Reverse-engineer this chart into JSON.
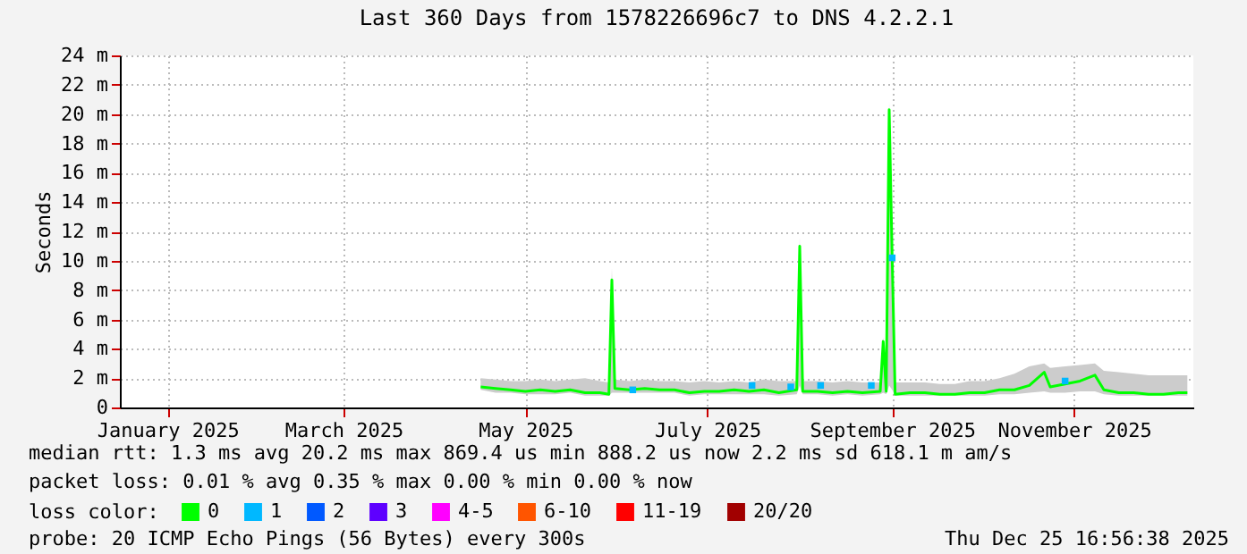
{
  "chart_data": {
    "type": "line",
    "title": "Last 360 Days from 1578226696c7 to DNS 4.2.2.1",
    "ylabel": "Seconds",
    "legend_title": "loss color:",
    "legend": "bottom",
    "grid": true,
    "xlim": [
      "2024-12-30",
      "2025-12-25"
    ],
    "xticks": [
      {
        "value": "2025-01-15",
        "label": "January 2025"
      },
      {
        "value": "2025-03-15",
        "label": "March 2025"
      },
      {
        "value": "2025-05-15",
        "label": "May 2025"
      },
      {
        "value": "2025-07-15",
        "label": "July 2025"
      },
      {
        "value": "2025-09-15",
        "label": "September 2025"
      },
      {
        "value": "2025-11-15",
        "label": "November 2025"
      }
    ],
    "ylim": [
      0,
      24
    ],
    "yticks": [
      0,
      {
        "value": 2,
        "label": "2 m"
      },
      {
        "value": 4,
        "label": "4 m"
      },
      {
        "value": 6,
        "label": "6 m"
      },
      {
        "value": 8,
        "label": "8 m"
      },
      {
        "value": 10,
        "label": "10 m"
      },
      {
        "value": 12,
        "label": "12 m"
      },
      {
        "value": 14,
        "label": "14 m"
      },
      {
        "value": 16,
        "label": "16 m"
      },
      {
        "value": 18,
        "label": "18 m"
      },
      {
        "value": 20,
        "label": "20 m"
      },
      {
        "value": 22,
        "label": "22 m"
      },
      {
        "value": 24,
        "label": "24 m"
      }
    ],
    "series": [
      {
        "name": "0",
        "color": "#00ff00",
        "x": [
          "2025-04-30",
          "2025-05-05",
          "2025-05-10",
          "2025-05-15",
          "2025-05-20",
          "2025-05-25",
          "2025-05-30",
          "2025-06-04",
          "2025-06-09",
          "2025-06-12",
          "2025-06-13",
          "2025-06-14",
          "2025-06-19",
          "2025-06-24",
          "2025-06-29",
          "2025-07-04",
          "2025-07-09",
          "2025-07-14",
          "2025-07-19",
          "2025-07-24",
          "2025-07-29",
          "2025-08-03",
          "2025-08-08",
          "2025-08-14",
          "2025-08-15",
          "2025-08-16",
          "2025-08-21",
          "2025-08-26",
          "2025-08-31",
          "2025-09-05",
          "2025-09-11",
          "2025-09-12",
          "2025-09-13",
          "2025-09-14",
          "2025-09-15",
          "2025-09-16",
          "2025-09-21",
          "2025-09-26",
          "2025-10-01",
          "2025-10-06",
          "2025-10-11",
          "2025-10-16",
          "2025-10-21",
          "2025-10-26",
          "2025-10-31",
          "2025-11-05",
          "2025-11-07",
          "2025-11-12",
          "2025-11-17",
          "2025-11-22",
          "2025-11-25",
          "2025-11-30",
          "2025-12-05",
          "2025-12-10",
          "2025-12-15",
          "2025-12-20",
          "2025-12-23"
        ],
        "values": [
          1.4,
          1.3,
          1.2,
          1.1,
          1.2,
          1.1,
          1.2,
          1.0,
          1.0,
          0.9,
          8.7,
          1.3,
          1.2,
          1.3,
          1.2,
          1.2,
          1.0,
          1.1,
          1.1,
          1.2,
          1.1,
          1.2,
          1.0,
          1.2,
          11.0,
          1.1,
          1.1,
          1.0,
          1.1,
          1.0,
          1.1,
          4.5,
          1.1,
          20.3,
          10.2,
          0.9,
          1.0,
          1.0,
          0.9,
          0.9,
          1.0,
          1.0,
          1.2,
          1.2,
          1.5,
          2.4,
          1.4,
          1.6,
          1.8,
          2.2,
          1.2,
          1.0,
          1.0,
          0.9,
          0.9,
          1.0,
          1.0
        ],
        "lower": [
          1.2,
          1.0,
          1.0,
          0.9,
          0.9,
          0.9,
          1.0,
          0.8,
          0.8,
          0.8,
          1.0,
          1.0,
          1.0,
          1.0,
          1.0,
          1.0,
          0.8,
          0.9,
          0.9,
          0.9,
          0.9,
          0.9,
          0.8,
          0.9,
          1.5,
          0.9,
          0.9,
          0.8,
          0.9,
          0.8,
          0.9,
          1.0,
          0.9,
          1.5,
          1.2,
          0.8,
          0.8,
          0.8,
          0.8,
          0.8,
          0.8,
          0.8,
          0.9,
          0.9,
          1.0,
          1.1,
          1.0,
          1.0,
          1.1,
          1.1,
          0.9,
          0.8,
          0.8,
          0.8,
          0.8,
          0.8,
          0.8
        ],
        "upper": [
          2.0,
          1.9,
          1.8,
          1.8,
          1.9,
          1.8,
          1.9,
          2.0,
          1.8,
          1.7,
          9.5,
          1.9,
          1.8,
          1.9,
          1.8,
          1.8,
          1.7,
          1.8,
          1.7,
          1.8,
          1.7,
          1.9,
          1.8,
          1.8,
          11.6,
          1.8,
          1.8,
          1.7,
          1.8,
          1.7,
          1.7,
          4.8,
          1.8,
          20.9,
          10.6,
          1.7,
          1.7,
          1.7,
          1.6,
          1.6,
          1.8,
          1.8,
          2.0,
          2.3,
          2.8,
          3.0,
          2.7,
          2.8,
          2.9,
          3.0,
          2.5,
          2.4,
          2.3,
          2.2,
          2.2,
          2.2,
          2.2
        ]
      },
      {
        "name": "1",
        "type": "scatter",
        "color": "#00b8ff",
        "x": [
          "2025-06-20",
          "2025-07-30",
          "2025-08-12",
          "2025-08-22",
          "2025-09-08",
          "2025-09-15",
          "2025-11-12"
        ],
        "values": [
          1.2,
          1.5,
          1.4,
          1.5,
          1.5,
          10.2,
          1.8
        ]
      },
      {
        "name": "2",
        "type": "scatter",
        "color": "#0059ff"
      },
      {
        "name": "3",
        "type": "scatter",
        "color": "#5e00ff"
      },
      {
        "name": "4-5",
        "type": "scatter",
        "color": "#ff00ff"
      },
      {
        "name": "6-10",
        "type": "scatter",
        "color": "#ff5500"
      },
      {
        "name": "11-19",
        "type": "scatter",
        "color": "#ff0000"
      },
      {
        "name": "20/20",
        "type": "scatter",
        "color": "#a10000"
      }
    ],
    "annotations": [
      "median rtt: 1.3 ms avg 20.2 ms max 869.4 us min 888.2 us now 2.2 ms sd 618.1 m am/s",
      "packet loss: 0.01 % avg 0.35 % max 0.00 % min 0.00 % now",
      "probe: 20 ICMP Echo Pings (56 Bytes) every 300s",
      "Thu Dec 25 16:56:38 2025"
    ]
  }
}
